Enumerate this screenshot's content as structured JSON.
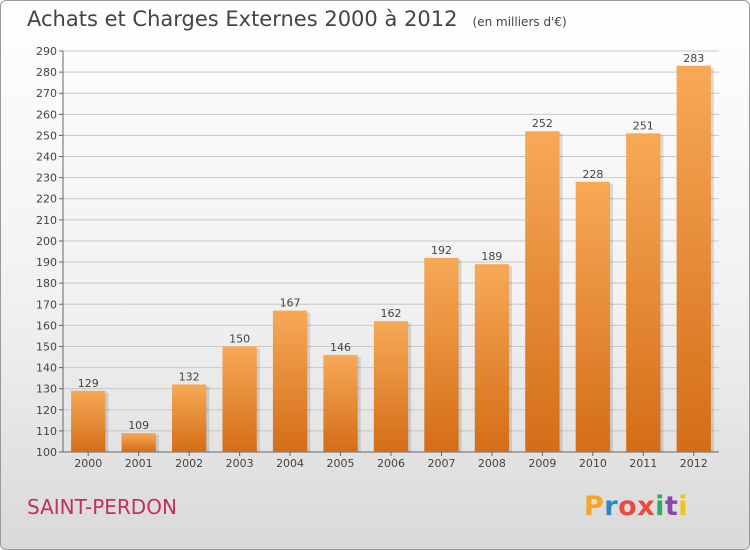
{
  "header": {
    "title": "Achats et Charges Externes 2000 à 2012",
    "unit": "(en milliers d'€)"
  },
  "footer": {
    "commune": "SAINT-PERDON",
    "logo_letters": [
      "P",
      "r",
      "o",
      "x",
      "i",
      "t",
      "i"
    ],
    "logo_colors": [
      "#f5a623",
      "#2e86c1",
      "#e74c3c",
      "#e74c3c",
      "#27ae60",
      "#8e44ad",
      "#f1c40f"
    ]
  },
  "colors": {
    "bar_top": "#f7a957",
    "bar_bottom": "#d46d17",
    "grid": "#c8c8c8",
    "text": "#444444",
    "commune": "#c0315b"
  },
  "chart_data": {
    "type": "bar",
    "title": "Achats et Charges Externes 2000 à 2012",
    "subtitle": "(en milliers d'€)",
    "categories": [
      "2000",
      "2001",
      "2002",
      "2003",
      "2004",
      "2005",
      "2006",
      "2007",
      "2008",
      "2009",
      "2010",
      "2011",
      "2012"
    ],
    "values": [
      129,
      109,
      132,
      150,
      167,
      146,
      162,
      192,
      189,
      252,
      228,
      251,
      283
    ],
    "ylim": [
      100,
      290
    ],
    "ytick_step": 10,
    "yticks": [
      "100",
      "110",
      "120",
      "130",
      "140",
      "150",
      "160",
      "170",
      "180",
      "190",
      "200",
      "210",
      "220",
      "230",
      "240",
      "250",
      "260",
      "270",
      "280",
      "290"
    ],
    "grid": true,
    "data_labels": true
  }
}
